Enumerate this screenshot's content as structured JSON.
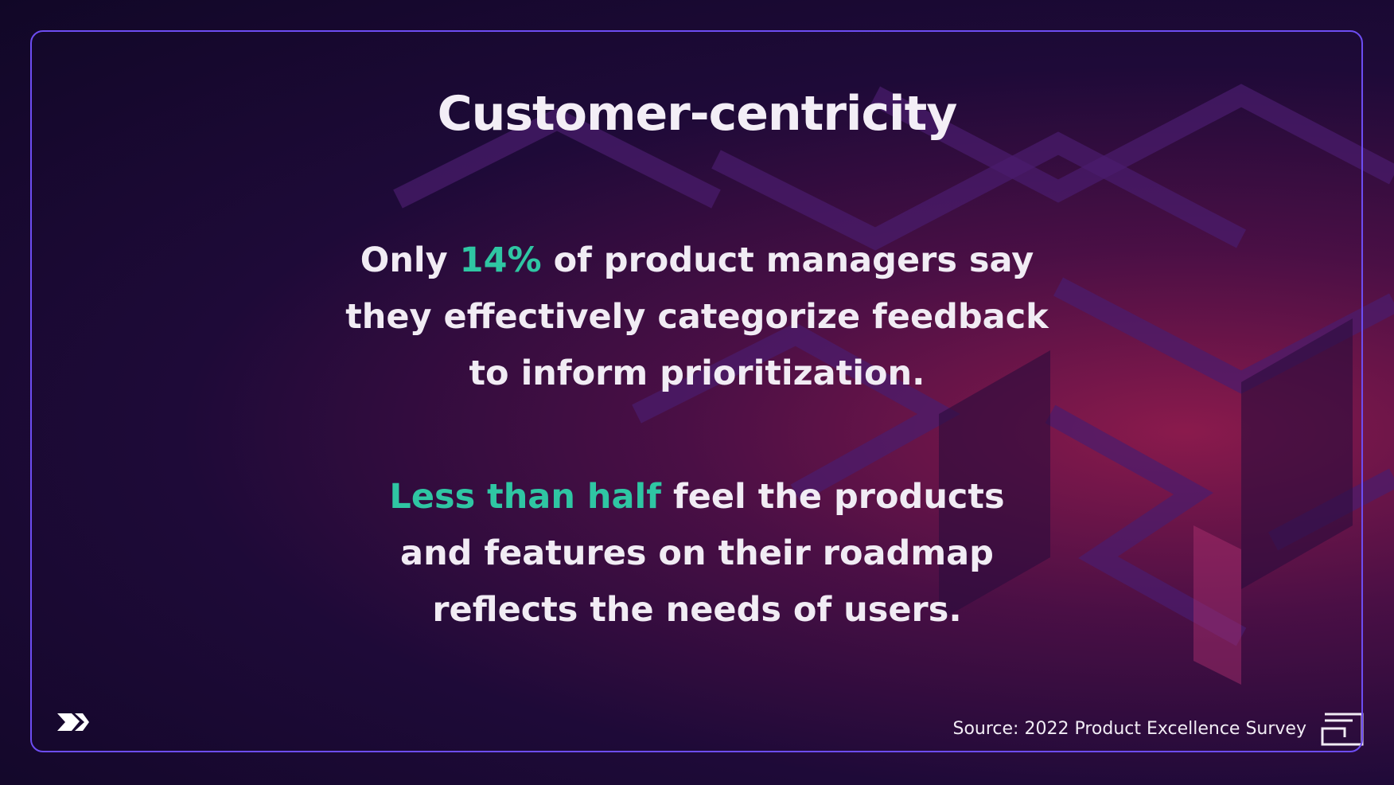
{
  "title": "Customer-centricity",
  "paragraphs": [
    {
      "lines": [
        [
          {
            "text": "Only "
          },
          {
            "text": "14%",
            "color": "#2fc6a3"
          },
          {
            "text": " of product managers say"
          }
        ],
        [
          {
            "text": "they effectively categorize feedback"
          }
        ],
        [
          {
            "text": "to inform prioritization."
          }
        ]
      ]
    },
    {
      "lines": [
        [
          {
            "text": "Less than half",
            "color": "#2fc6a3"
          },
          {
            "text": " feel the products"
          }
        ],
        [
          {
            "text": "and features on their roadmap"
          }
        ],
        [
          {
            "text": "reflects the needs of users."
          }
        ]
      ]
    }
  ],
  "source": "Source: 2022 Product Excellence Survey"
}
